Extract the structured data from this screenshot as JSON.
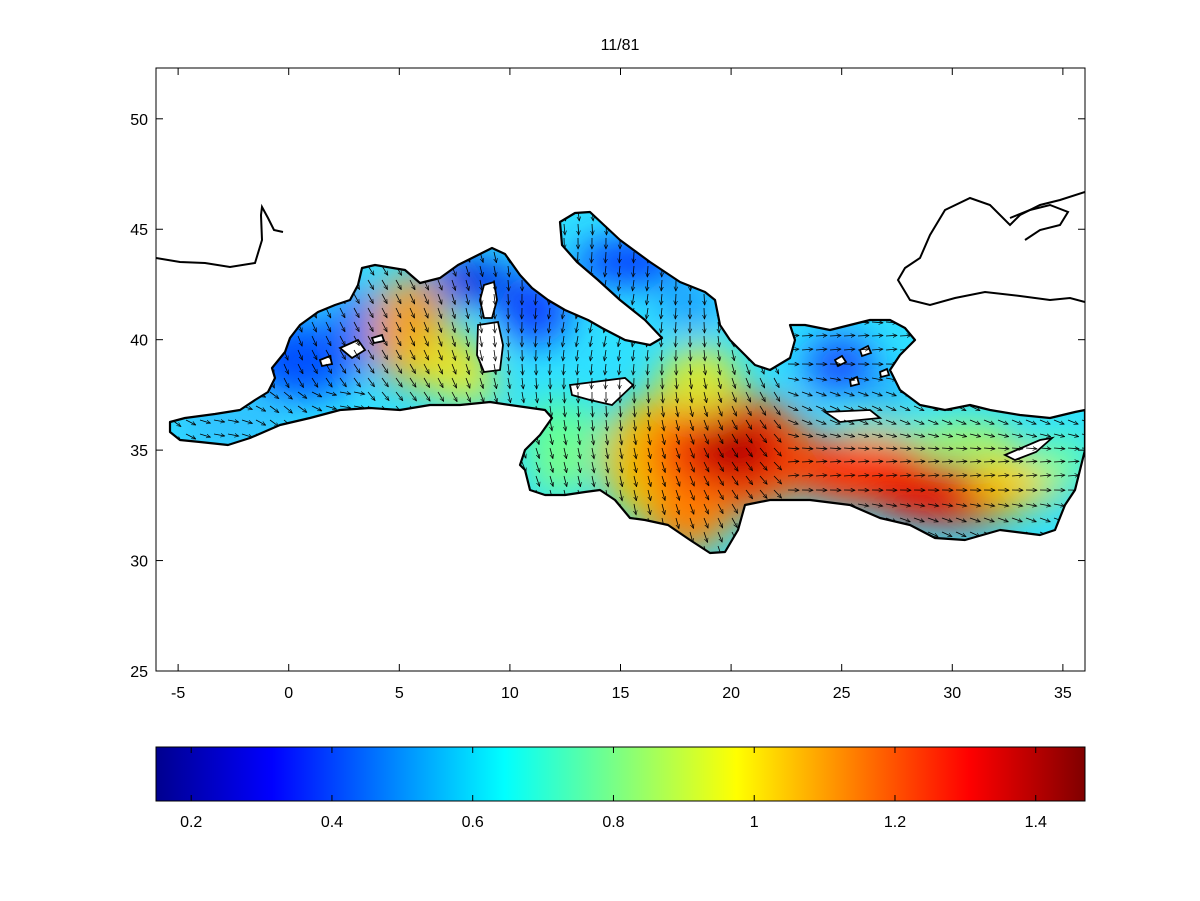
{
  "title": "11/81",
  "map": {
    "region": "Mediterranean Sea",
    "lon_range": [
      -6,
      36
    ],
    "lat_range": [
      25,
      52.3
    ],
    "x_ticks": [
      -5,
      0,
      5,
      10,
      15,
      20,
      25,
      30,
      35
    ],
    "y_ticks": [
      25,
      30,
      35,
      40,
      45,
      50
    ],
    "x_tick_labels": [
      "-5",
      "0",
      "5",
      "10",
      "15",
      "20",
      "25",
      "30",
      "35"
    ],
    "y_tick_labels": [
      "25",
      "30",
      "35",
      "40",
      "45",
      "50"
    ],
    "field_peak": {
      "lon": 19.5,
      "lat": 35,
      "value": 1.45
    },
    "arrows": "vector field, mostly pointing south-east",
    "land_color": "#ffffff",
    "coast_color": "#000000"
  },
  "colorbar": {
    "colormap": "jet",
    "range": [
      0.15,
      1.47
    ],
    "ticks": [
      0.2,
      0.4,
      0.6,
      0.8,
      1,
      1.2,
      1.4
    ],
    "tick_labels": [
      "0.2",
      "0.4",
      "0.6",
      "0.8",
      "1",
      "1.2",
      "1.4"
    ]
  }
}
